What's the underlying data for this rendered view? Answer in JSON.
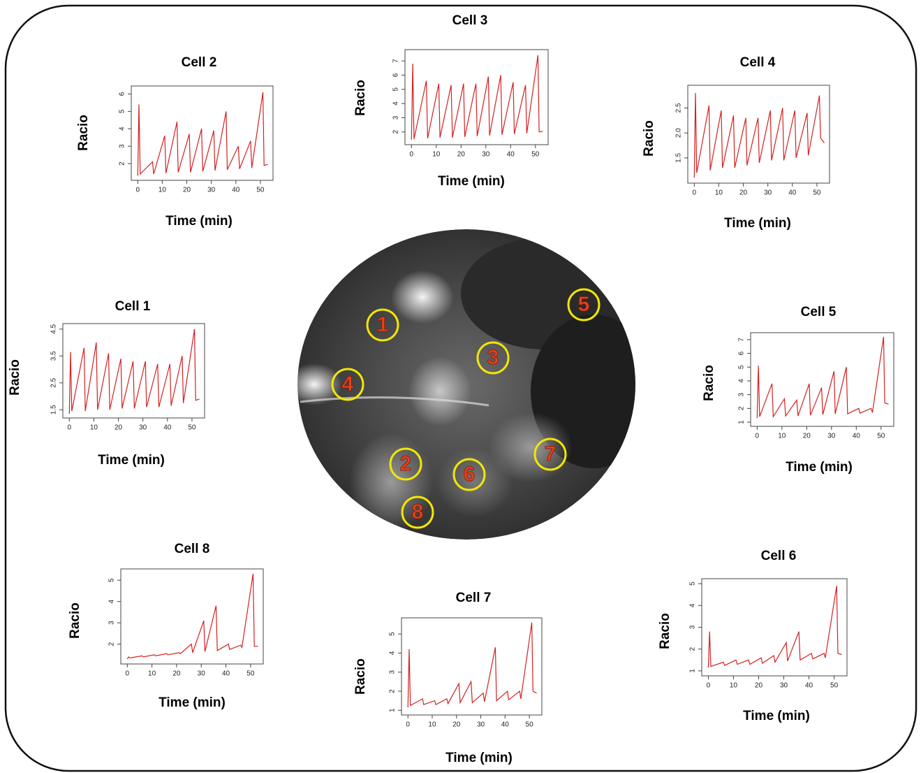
{
  "chart_data": [
    {
      "type": "line",
      "title": "Cell 1",
      "x_label": "Time (min)",
      "y_label": "Racio",
      "color": "#d42020",
      "xlim": [
        -1.5,
        54
      ],
      "ylim": [
        1.3,
        4.6
      ],
      "xticks": [
        0,
        10,
        20,
        30,
        40,
        50
      ],
      "yticks": [
        1.5,
        2.5,
        3.5,
        4.5
      ],
      "x": [
        0,
        0.5,
        1,
        6,
        6.5,
        11,
        11.5,
        16,
        16.5,
        21,
        21.5,
        26,
        26.5,
        31,
        31.5,
        36,
        36.5,
        41,
        41.5,
        46,
        46.5,
        51,
        51.5,
        53
      ],
      "values": [
        1.35,
        3.65,
        1.45,
        3.8,
        1.45,
        4.0,
        1.5,
        3.6,
        1.5,
        3.4,
        1.55,
        3.3,
        1.55,
        3.3,
        1.6,
        3.2,
        1.6,
        3.2,
        1.65,
        3.5,
        1.75,
        4.5,
        1.85,
        1.9
      ]
    },
    {
      "type": "line",
      "title": "Cell 2",
      "x_label": "Time (min)",
      "y_label": "Racio",
      "color": "#d42020",
      "xlim": [
        -1.5,
        54
      ],
      "ylim": [
        1.2,
        6.3
      ],
      "xticks": [
        0,
        10,
        20,
        30,
        40,
        50
      ],
      "yticks": [
        2,
        3,
        4,
        5,
        6
      ],
      "x": [
        0,
        0.5,
        1,
        6,
        6.5,
        11,
        11.5,
        16,
        16.5,
        21,
        21.5,
        26,
        26.5,
        31,
        31.5,
        36,
        36.5,
        41,
        41.5,
        46,
        46.5,
        51,
        51.5,
        53
      ],
      "values": [
        1.3,
        5.4,
        1.4,
        2.1,
        1.4,
        3.6,
        1.45,
        4.4,
        1.5,
        3.7,
        1.5,
        4.0,
        1.55,
        3.9,
        1.6,
        5.0,
        1.65,
        3.0,
        1.7,
        3.3,
        1.75,
        6.1,
        1.9,
        1.95
      ]
    },
    {
      "type": "line",
      "title": "Cell 3",
      "x_label": "Time (min)",
      "y_label": "Racio",
      "color": "#d42020",
      "xlim": [
        -1.5,
        54
      ],
      "ylim": [
        1.3,
        7.6
      ],
      "xticks": [
        0,
        10,
        20,
        30,
        40,
        50
      ],
      "yticks": [
        2,
        3,
        4,
        5,
        6,
        7
      ],
      "x": [
        0,
        0.5,
        1,
        6,
        6.5,
        11,
        11.5,
        16,
        16.5,
        21,
        21.5,
        26,
        26.5,
        31,
        31.5,
        36,
        36.5,
        41,
        41.5,
        46,
        46.5,
        51,
        51.5,
        53
      ],
      "values": [
        1.45,
        6.8,
        1.5,
        5.6,
        1.55,
        5.4,
        1.6,
        5.3,
        1.6,
        5.4,
        1.65,
        5.4,
        1.7,
        5.9,
        1.75,
        6.0,
        1.8,
        5.5,
        1.85,
        5.3,
        1.9,
        7.4,
        2.0,
        2.05
      ]
    },
    {
      "type": "line",
      "title": "Cell 4",
      "x_label": "Time (min)",
      "y_label": "Racio",
      "color": "#d42020",
      "xlim": [
        -1.5,
        54
      ],
      "ylim": [
        1.05,
        2.9
      ],
      "xticks": [
        0,
        10,
        20,
        30,
        40,
        50
      ],
      "yticks": [
        1.5,
        {
          "value": 2,
          "label": "2.0"
        },
        2.5
      ],
      "x": [
        0,
        0.5,
        1,
        6,
        6.5,
        11,
        11.5,
        16,
        16.5,
        21,
        21.5,
        26,
        26.5,
        31,
        31.5,
        36,
        36.5,
        41,
        41.5,
        46,
        46.5,
        51,
        51.5,
        53
      ],
      "values": [
        1.1,
        2.8,
        1.2,
        2.55,
        1.25,
        2.45,
        1.3,
        2.35,
        1.3,
        2.3,
        1.35,
        2.3,
        1.4,
        2.45,
        1.45,
        2.5,
        1.45,
        2.45,
        1.5,
        2.4,
        1.55,
        2.75,
        1.9,
        1.8
      ]
    },
    {
      "type": "line",
      "title": "Cell 5",
      "x_label": "Time (min)",
      "y_label": "Racio",
      "color": "#d42020",
      "xlim": [
        -1.5,
        54
      ],
      "ylim": [
        0.9,
        7.3
      ],
      "xticks": [
        0,
        10,
        20,
        30,
        40,
        50
      ],
      "yticks": [
        1,
        2,
        3,
        4,
        5,
        6,
        7
      ],
      "x": [
        0,
        0.5,
        1,
        6,
        6.5,
        11,
        11.5,
        16,
        16.5,
        21,
        21.5,
        26,
        26.5,
        31,
        31.5,
        36,
        36.5,
        41,
        41.5,
        46,
        46.5,
        51,
        51.5,
        53
      ],
      "values": [
        1.3,
        5.1,
        1.4,
        3.8,
        1.4,
        2.7,
        1.45,
        2.6,
        1.45,
        3.8,
        1.5,
        3.5,
        1.55,
        4.7,
        1.6,
        5.0,
        1.6,
        2.0,
        1.65,
        2.0,
        1.7,
        7.2,
        2.4,
        2.3
      ]
    },
    {
      "type": "line",
      "title": "Cell 6",
      "x_label": "Time (min)",
      "y_label": "Racio",
      "color": "#d42020",
      "xlim": [
        -1.5,
        54
      ],
      "ylim": [
        0.9,
        5.1
      ],
      "xticks": [
        0,
        10,
        20,
        30,
        40,
        50
      ],
      "yticks": [
        1,
        2,
        3,
        4,
        5
      ],
      "x": [
        0,
        0.5,
        1,
        6,
        6.5,
        11,
        11.5,
        16,
        16.5,
        21,
        21.5,
        26,
        26.5,
        31,
        31.5,
        36,
        36.5,
        41,
        41.5,
        46,
        46.5,
        51,
        51.5,
        53
      ],
      "values": [
        1.15,
        2.8,
        1.2,
        1.4,
        1.25,
        1.5,
        1.3,
        1.5,
        1.3,
        1.6,
        1.35,
        1.7,
        1.4,
        2.3,
        1.45,
        2.8,
        1.5,
        1.8,
        1.55,
        1.8,
        1.6,
        4.9,
        1.8,
        1.75
      ]
    },
    {
      "type": "line",
      "title": "Cell 7",
      "x_label": "Time (min)",
      "y_label": "Racio",
      "color": "#d42020",
      "xlim": [
        -1.5,
        54
      ],
      "ylim": [
        0.9,
        5.7
      ],
      "xticks": [
        0,
        10,
        20,
        30,
        40,
        50
      ],
      "yticks": [
        1,
        2,
        3,
        4,
        5
      ],
      "x": [
        0,
        0.5,
        1,
        6,
        6.5,
        11,
        11.5,
        16,
        16.5,
        21,
        21.5,
        26,
        26.5,
        31,
        31.5,
        36,
        36.5,
        41,
        41.5,
        46,
        46.5,
        51,
        51.5,
        53
      ],
      "values": [
        1.15,
        4.2,
        1.25,
        1.6,
        1.3,
        1.5,
        1.3,
        1.6,
        1.35,
        2.4,
        1.4,
        2.5,
        1.4,
        1.9,
        1.45,
        4.3,
        1.5,
        2.0,
        1.55,
        2.0,
        1.6,
        5.6,
        2.0,
        1.9
      ]
    },
    {
      "type": "line",
      "title": "Cell 8",
      "x_label": "Time (min)",
      "y_label": "Racio",
      "color": "#d42020",
      "xlim": [
        -1.5,
        54
      ],
      "ylim": [
        1.2,
        5.4
      ],
      "xticks": [
        0,
        10,
        20,
        30,
        40,
        50
      ],
      "yticks": [
        2,
        3,
        4,
        5
      ],
      "x": [
        0,
        0.5,
        1,
        6,
        6.5,
        11,
        11.5,
        16,
        16.5,
        21,
        21.5,
        26,
        26.5,
        31,
        31.5,
        36,
        36.5,
        41,
        41.5,
        46,
        46.5,
        51,
        51.5,
        53
      ],
      "values": [
        1.3,
        1.4,
        1.35,
        1.45,
        1.4,
        1.5,
        1.45,
        1.55,
        1.5,
        1.6,
        1.55,
        2.0,
        1.6,
        3.1,
        1.65,
        3.8,
        1.7,
        2.0,
        1.75,
        1.95,
        1.85,
        5.3,
        1.9,
        1.9
      ]
    }
  ],
  "image": {
    "labels": [
      "1",
      "2",
      "3",
      "4",
      "5",
      "6",
      "7",
      "8"
    ]
  }
}
